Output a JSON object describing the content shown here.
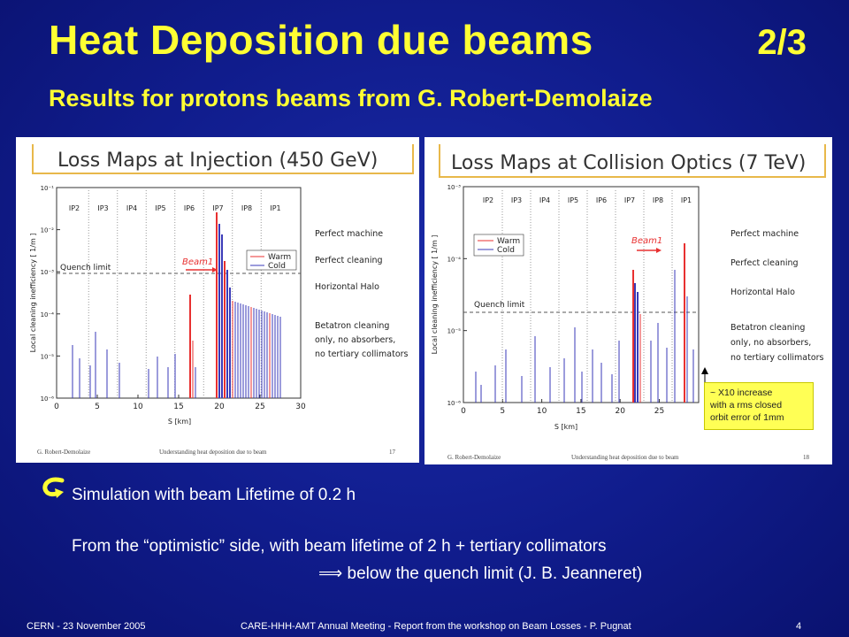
{
  "slide": {
    "title": "Heat Deposition due beams",
    "page_fraction": "2/3",
    "subtitle": "Results for protons beams from G. Robert-Demolaize"
  },
  "left_panel": {
    "title": "Loss Maps at Injection (450 GeV)",
    "ir_labels": [
      "IP2",
      "IP3",
      "IP4",
      "IP5",
      "IP6",
      "IP7",
      "IP8",
      "IP1"
    ],
    "y_ticks": [
      "10⁻¹",
      "10⁻²",
      "10⁻³",
      "10⁻⁴",
      "10⁻⁵",
      "10⁻⁶"
    ],
    "x_ticks": [
      "0",
      "5",
      "10",
      "15",
      "20",
      "25",
      "30"
    ],
    "xlabel": "S [km]",
    "ylabel": "Local cleaning inefficiency [ 1/m ]",
    "quench_label": "Quench limit",
    "beam_label": "Beam1",
    "legend": [
      "Warm",
      "Cold"
    ],
    "notes": [
      "Perfect machine",
      "Perfect cleaning",
      "Horizontal Halo",
      "Betatron cleaning",
      "only, no absorbers,",
      "no tertiary collimators"
    ],
    "footer_author": "G. Robert-Demolaize",
    "footer_title": "Understanding heat deposition due to beam",
    "footer_page": "17"
  },
  "right_panel": {
    "title": "Loss Maps at Collision Optics (7 TeV)",
    "ir_labels": [
      "IP2",
      "IP3",
      "IP4",
      "IP5",
      "IP6",
      "IP7",
      "IP8",
      "IP1"
    ],
    "y_ticks": [
      "10⁻³",
      "10⁻⁴",
      "10⁻⁵",
      "10⁻⁶"
    ],
    "x_ticks": [
      "0",
      "5",
      "10",
      "15",
      "20",
      "25"
    ],
    "xlabel": "S [km]",
    "ylabel": "Local cleaning inefficiency [ 1/m ]",
    "quench_label": "Quench limit",
    "beam_label": "Beam1",
    "legend": [
      "Warm",
      "Cold"
    ],
    "notes": [
      "Perfect machine",
      "Perfect cleaning",
      "Horizontal Halo",
      "Betatron cleaning",
      "only, no absorbers,",
      "no tertiary collimators"
    ],
    "footer_author": "G. Robert-Demolaize",
    "footer_title": "Understanding heat deposition due to beam",
    "footer_page": "18",
    "callout": [
      "~ X10 increase",
      "with a rms closed",
      "orbit error of 1mm"
    ]
  },
  "body": {
    "line1": "Simulation with beam Lifetime of 0.2 h",
    "line2": "From the “optimistic” side, with beam lifetime of 2 h + tertiary collimators",
    "line3": "⟹  below the quench limit (J. B. Jeanneret)"
  },
  "footer": {
    "left": "CERN - 23 November 2005",
    "center": "CARE-HHH-AMT Annual Meeting - Report from the workshop on Beam Losses - P. Pugnat",
    "right": "4"
  },
  "colors": {
    "title": "#ffff33",
    "warm": "#e83030",
    "cold": "#3a3ab8",
    "callout": "#ffff55"
  }
}
